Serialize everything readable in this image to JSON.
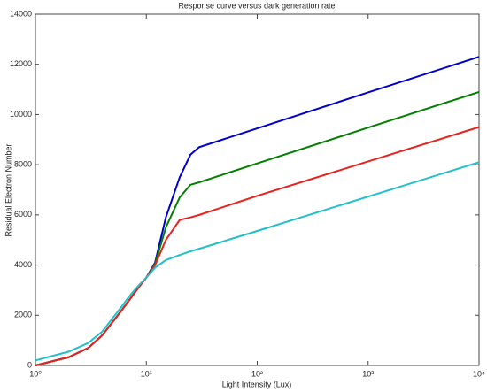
{
  "chart_data": {
    "type": "line",
    "title": "Response curve versus dark generation rate",
    "x_label": "Light Intensity (Lux)",
    "y_label": "Residual Electron Number",
    "x_scale": "log",
    "x": [
      1,
      2,
      3,
      4,
      5,
      6,
      7,
      8,
      9,
      10,
      12,
      15,
      20,
      25,
      30,
      100,
      1000,
      10000
    ],
    "series": [
      {
        "name": "blue",
        "color": "#0000cc",
        "values": [
          0,
          330,
          700,
          1200,
          1750,
          2200,
          2600,
          2950,
          3250,
          3500,
          4100,
          5900,
          7500,
          8400,
          8700,
          9450,
          10880,
          12300
        ]
      },
      {
        "name": "green",
        "color": "#007f00",
        "values": [
          0,
          330,
          700,
          1200,
          1750,
          2200,
          2600,
          2950,
          3250,
          3500,
          4050,
          5500,
          6700,
          7200,
          7300,
          8050,
          9480,
          10900
        ]
      },
      {
        "name": "red",
        "color": "#e8211e",
        "values": [
          0,
          330,
          700,
          1200,
          1750,
          2200,
          2600,
          2950,
          3250,
          3500,
          4000,
          5000,
          5800,
          5900,
          6000,
          6760,
          8130,
          9500
        ]
      },
      {
        "name": "cyan",
        "color": "#20c0c8",
        "values": [
          200,
          550,
          900,
          1350,
          1900,
          2350,
          2750,
          3050,
          3300,
          3500,
          3900,
          4200,
          4400,
          4550,
          4650,
          5360,
          6730,
          8100
        ]
      }
    ],
    "xlim": [
      1,
      10000
    ],
    "xticks": [
      {
        "value": 1,
        "label": "10⁰"
      },
      {
        "value": 10,
        "label": "10¹"
      },
      {
        "value": 100,
        "label": "10²"
      },
      {
        "value": 1000,
        "label": "10³"
      },
      {
        "value": 10000,
        "label": "10⁴"
      }
    ],
    "ylim": [
      0,
      14000
    ],
    "yticks": [
      0,
      2000,
      4000,
      6000,
      8000,
      10000,
      12000,
      14000
    ]
  }
}
